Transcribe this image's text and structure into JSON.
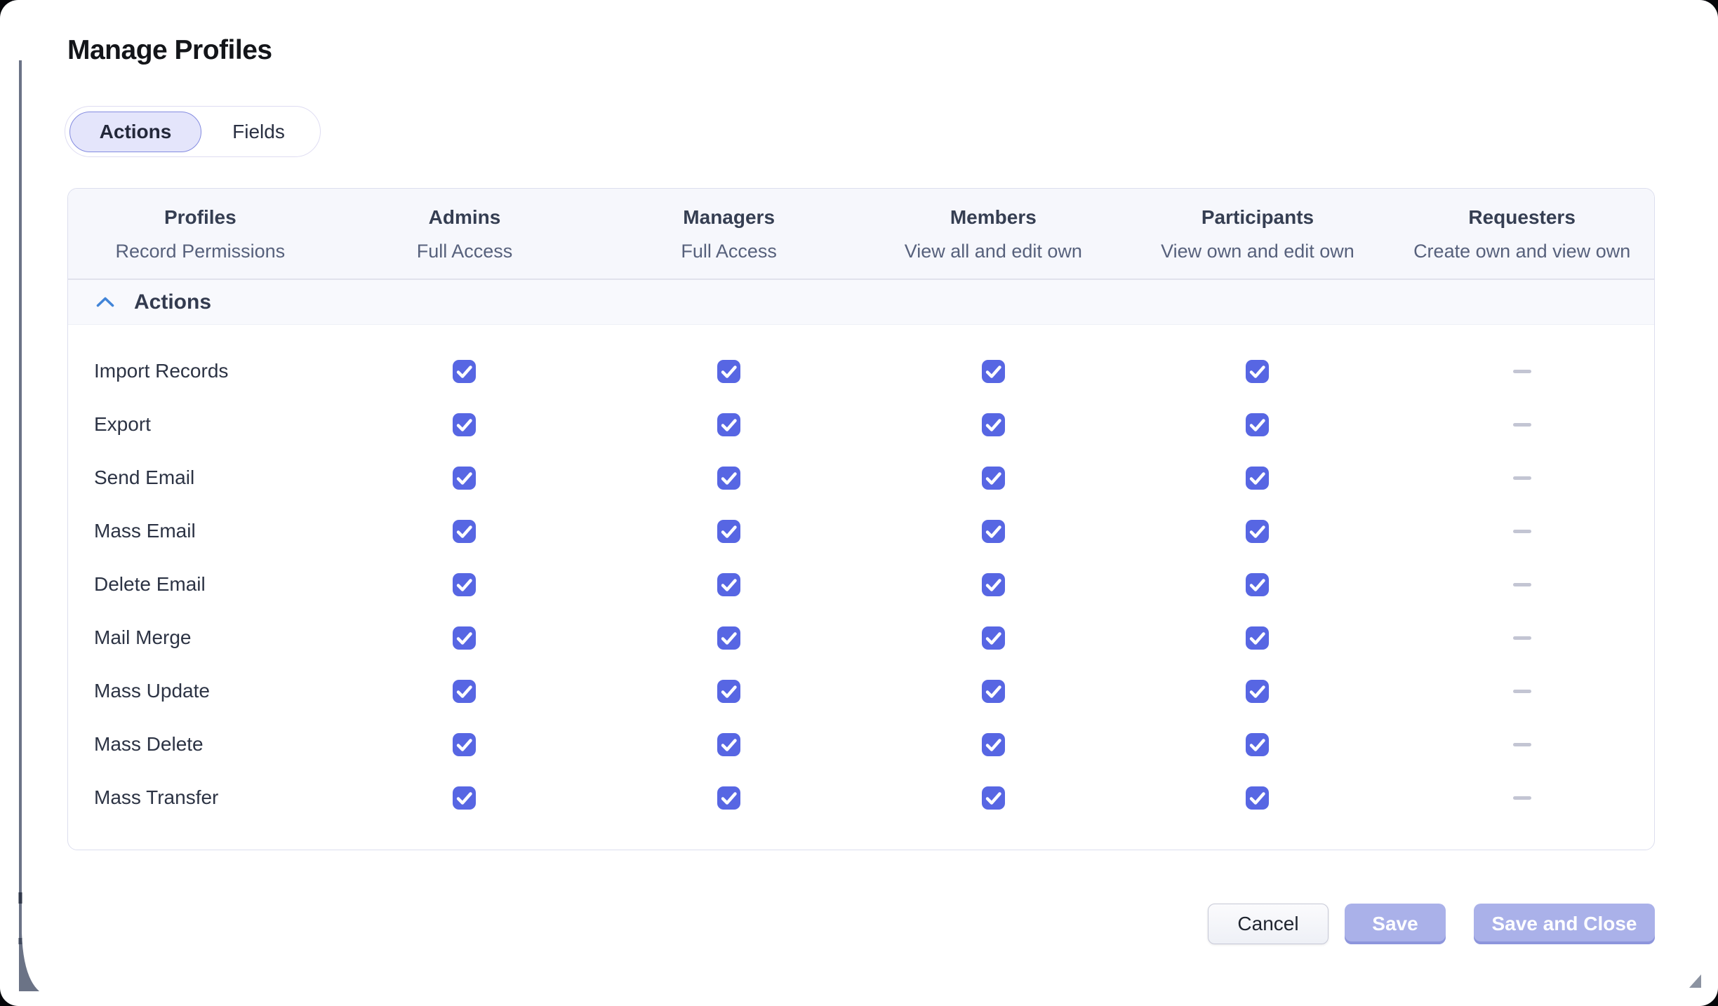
{
  "window": {
    "title": "Manage Profiles"
  },
  "tabs": {
    "items": [
      {
        "label": "Actions",
        "selected": true
      },
      {
        "label": "Fields",
        "selected": false
      }
    ]
  },
  "table": {
    "columns": [
      {
        "title": "Profiles",
        "subtitle": "Record Permissions"
      },
      {
        "title": "Admins",
        "subtitle": "Full Access"
      },
      {
        "title": "Managers",
        "subtitle": "Full Access"
      },
      {
        "title": "Members",
        "subtitle": "View all and edit own"
      },
      {
        "title": "Participants",
        "subtitle": "View own and edit own"
      },
      {
        "title": "Requesters",
        "subtitle": "Create own and view own"
      }
    ],
    "section": {
      "label": "Actions",
      "collapsed": false
    },
    "rows": [
      {
        "label": "Import Records",
        "checks": [
          true,
          true,
          true,
          true,
          null
        ]
      },
      {
        "label": "Export",
        "checks": [
          true,
          true,
          true,
          true,
          null
        ]
      },
      {
        "label": "Send Email",
        "checks": [
          true,
          true,
          true,
          true,
          null
        ]
      },
      {
        "label": "Mass Email",
        "checks": [
          true,
          true,
          true,
          true,
          null
        ]
      },
      {
        "label": "Delete Email",
        "checks": [
          true,
          true,
          true,
          true,
          null
        ]
      },
      {
        "label": "Mail Merge",
        "checks": [
          true,
          true,
          true,
          true,
          null
        ]
      },
      {
        "label": "Mass Update",
        "checks": [
          true,
          true,
          true,
          true,
          null
        ]
      },
      {
        "label": "Mass Delete",
        "checks": [
          true,
          true,
          true,
          true,
          null
        ]
      },
      {
        "label": "Mass Transfer",
        "checks": [
          true,
          true,
          true,
          true,
          null
        ]
      }
    ]
  },
  "footer": {
    "cancel": "Cancel",
    "save": "Save",
    "save_and_close": "Save and Close"
  },
  "colors": {
    "accent": "#5766e3",
    "checkbox": "#5766e3",
    "dash": "#c3c5d3",
    "tab_selected_bg": "#e4e5fb",
    "tab_selected_border": "#848be0",
    "primary_button": "#aab1e9",
    "primary_button_edge": "#8d95dc",
    "chevron": "#4285d8",
    "header_bg": "#f6f7fc",
    "section_bg": "#f8f9fd"
  }
}
